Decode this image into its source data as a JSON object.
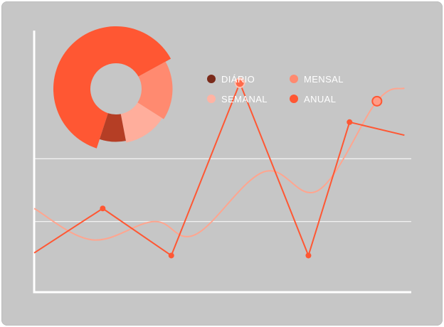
{
  "chart_data": [
    {
      "type": "pie",
      "variant": "donut",
      "title": "",
      "slices": [
        {
          "label": "ANUAL",
          "value": 62,
          "color": "#ff5733"
        },
        {
          "label": "MENSAL",
          "value": 17,
          "color": "#ff8a70"
        },
        {
          "label": "SEMANAL",
          "value": 13,
          "color": "#ffae9c"
        },
        {
          "label": "DIÁRIO",
          "value": 8,
          "color": "#b53e25"
        }
      ],
      "legend": {
        "placement": "right-of-pie",
        "items": [
          {
            "label": "DIÁRIO",
            "color": "#7a2a1a"
          },
          {
            "label": "MENSAL",
            "color": "#ff8a70"
          },
          {
            "label": "SEMANAL",
            "color": "#ffb3a3"
          },
          {
            "label": "ANUAL",
            "color": "#ff5733"
          }
        ]
      }
    },
    {
      "type": "line",
      "title": "",
      "xlabel": "",
      "ylabel": "",
      "xlim": [
        0,
        11
      ],
      "ylim": [
        0,
        10
      ],
      "grid": "horizontal",
      "gridlines": [
        2.7,
        5.1
      ],
      "series": [
        {
          "color": "#ff5733",
          "style": "straight",
          "points": [
            [
              0,
              1.5
            ],
            [
              2,
              3.2
            ],
            [
              4,
              1.4
            ],
            [
              6,
              8.0
            ],
            [
              8,
              1.4
            ],
            [
              9.2,
              6.5
            ],
            [
              10.8,
              6.0
            ]
          ],
          "highlight_index": 3
        },
        {
          "color": "#ffa58f",
          "style": "smooth",
          "points": [
            [
              0,
              3.2
            ],
            [
              1.7,
              2.0
            ],
            [
              3.5,
              2.7
            ],
            [
              4.7,
              2.2
            ],
            [
              6.7,
              4.6
            ],
            [
              8.3,
              3.9
            ],
            [
              10,
              7.3
            ],
            [
              10.8,
              7.8
            ]
          ],
          "highlight_index": 6
        }
      ]
    }
  ]
}
